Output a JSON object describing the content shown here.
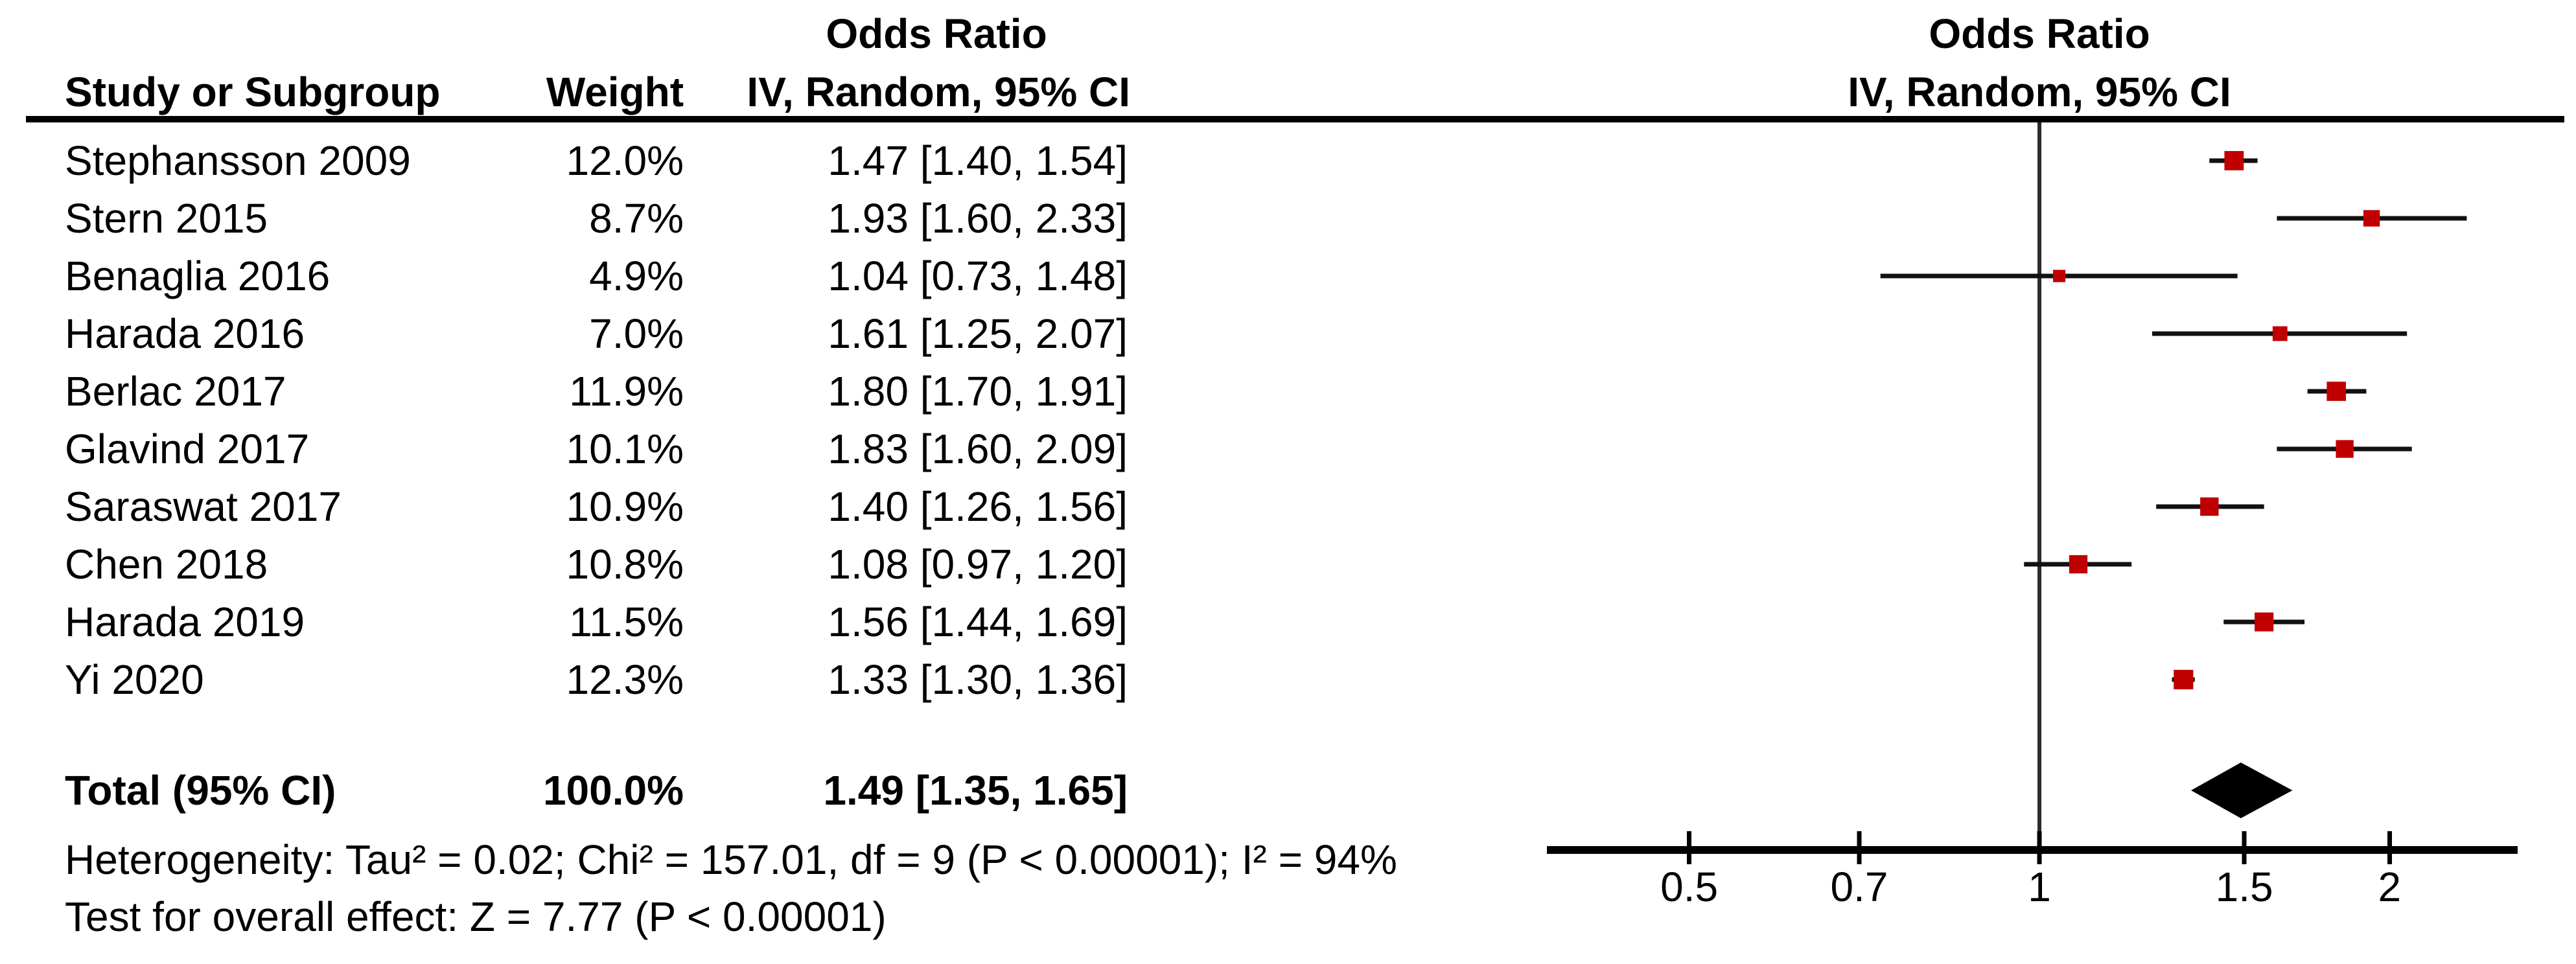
{
  "header": {
    "left": {
      "or_title": "Odds Ratio",
      "study": "Study or Subgroup",
      "weight": "Weight",
      "method": "IV, Random, 95% CI"
    },
    "right": {
      "or_title": "Odds Ratio",
      "method": "IV, Random, 95% CI"
    }
  },
  "footnotes": {
    "heterogeneity": "Heterogeneity: Tau² = 0.02; Chi² = 157.01, df = 9 (P < 0.00001); I² = 94%",
    "overall_effect": "Test for overall effect: Z = 7.77 (P < 0.00001)"
  },
  "colors": {
    "marker_square": "#c00000",
    "ci_line": "#111111",
    "null_line": "#2b2b2b",
    "axis": "#000000",
    "diamond": "#000000",
    "text": "#000000"
  },
  "chart_data": {
    "type": "scatter",
    "variant": "forest-plot",
    "effect_measure": "Odds Ratio",
    "model": "IV, Random, 95% CI",
    "x_scale": "log",
    "x_ticks": [
      "0.5",
      "0.7",
      "1",
      "1.5",
      "2"
    ],
    "x_tick_values": [
      0.5,
      0.7,
      1,
      1.5,
      2
    ],
    "x_axis_range": [
      0.38,
      2.57
    ],
    "null_value": 1,
    "grid": false,
    "legend": false,
    "studies": [
      {
        "name": "Stephansson 2009",
        "weight_label": "12.0%",
        "weight": 12.0,
        "estimate_label": "1.47 [1.40, 1.54]",
        "or": 1.47,
        "ci_low": 1.4,
        "ci_high": 1.54
      },
      {
        "name": "Stern 2015",
        "weight_label": "8.7%",
        "weight": 8.7,
        "estimate_label": "1.93 [1.60, 2.33]",
        "or": 1.93,
        "ci_low": 1.6,
        "ci_high": 2.33
      },
      {
        "name": "Benaglia 2016",
        "weight_label": "4.9%",
        "weight": 4.9,
        "estimate_label": "1.04 [0.73, 1.48]",
        "or": 1.04,
        "ci_low": 0.73,
        "ci_high": 1.48
      },
      {
        "name": "Harada 2016",
        "weight_label": "7.0%",
        "weight": 7.0,
        "estimate_label": "1.61 [1.25, 2.07]",
        "or": 1.61,
        "ci_low": 1.25,
        "ci_high": 2.07
      },
      {
        "name": "Berlac 2017",
        "weight_label": "11.9%",
        "weight": 11.9,
        "estimate_label": "1.80 [1.70, 1.91]",
        "or": 1.8,
        "ci_low": 1.7,
        "ci_high": 1.91
      },
      {
        "name": "Glavind 2017",
        "weight_label": "10.1%",
        "weight": 10.1,
        "estimate_label": "1.83 [1.60, 2.09]",
        "or": 1.83,
        "ci_low": 1.6,
        "ci_high": 2.09
      },
      {
        "name": "Saraswat 2017",
        "weight_label": "10.9%",
        "weight": 10.9,
        "estimate_label": "1.40 [1.26, 1.56]",
        "or": 1.4,
        "ci_low": 1.26,
        "ci_high": 1.56
      },
      {
        "name": "Chen 2018",
        "weight_label": "10.8%",
        "weight": 10.8,
        "estimate_label": "1.08 [0.97, 1.20]",
        "or": 1.08,
        "ci_low": 0.97,
        "ci_high": 1.2
      },
      {
        "name": "Harada 2019",
        "weight_label": "11.5%",
        "weight": 11.5,
        "estimate_label": "1.56 [1.44, 1.69]",
        "or": 1.56,
        "ci_low": 1.44,
        "ci_high": 1.69
      },
      {
        "name": "Yi 2020",
        "weight_label": "12.3%",
        "weight": 12.3,
        "estimate_label": "1.33 [1.30, 1.36]",
        "or": 1.33,
        "ci_low": 1.3,
        "ci_high": 1.36
      }
    ],
    "total": {
      "name": "Total (95% CI)",
      "weight_label": "100.0%",
      "weight": 100.0,
      "estimate_label": "1.49 [1.35, 1.65]",
      "or": 1.49,
      "ci_low": 1.35,
      "ci_high": 1.65
    }
  }
}
